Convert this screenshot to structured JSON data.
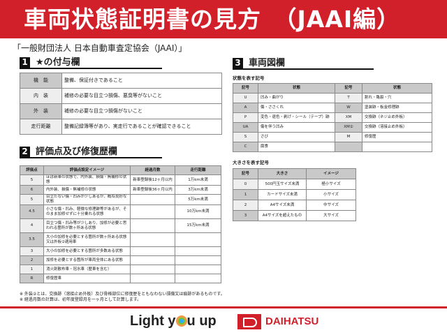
{
  "header": {
    "title": "車両状態証明書の見方　（JAAI編）"
  },
  "subtitle": "「一般財団法人 日本自動車査定協会（JAAI）」",
  "section1": {
    "num": "1",
    "title": "★の付与欄",
    "rows": [
      [
        "機　能",
        "整備、保証付きであること"
      ],
      [
        "内　装",
        "補修の必要な目立つ損傷、悪臭等がないこと"
      ],
      [
        "外　装",
        "補修の必要な目立つ損傷がないこと"
      ],
      [
        "走行距離",
        "整備記録簿等があり、実走行であることが確認できること"
      ]
    ]
  },
  "section2": {
    "num": "2",
    "title": "評価点及び修復歴欄",
    "headers": [
      "評価点",
      "評価点設定イメージ",
      "経過月数",
      "走行距離"
    ],
    "rows": [
      [
        "5",
        "ほぼ新車の状態で、内外装、損傷・無補修の状態",
        "新車登録後12ヶ月以内",
        "1万km未満"
      ],
      [
        "6",
        "内外装、損傷・無補修の状態",
        "新車登録後36ヶ月以内",
        "3万km未満"
      ],
      [
        "5",
        "目立たない傷・凹みが少しあるが、概ね良好な状態",
        "",
        "5万km未満"
      ],
      [
        "4.5",
        "小さな傷・凹み、軽微な修理跡等があるが、そのまま加修せずに十分乗れる状態",
        "",
        "10万km未満"
      ],
      [
        "4",
        "目立つ傷・凹み等が少しあり、加修が必要と思われる箇所が数ヶ所ある状態",
        "",
        "15万km未満"
      ],
      [
        "3.5",
        "大小の加修を必要とする箇所が数ヶ所ある状態又は外板②適用車",
        "",
        ""
      ],
      [
        "3",
        "大小の加修を必要とする箇所が多数ある状態",
        "",
        ""
      ],
      [
        "2",
        "加修を必要とする箇所が車両全体にある状態",
        "",
        ""
      ],
      [
        "1",
        "消火剤散布車・冠水車（歴車を含む）",
        "",
        ""
      ],
      [
        "R",
        "修復歴車",
        "",
        ""
      ]
    ]
  },
  "section3": {
    "num": "3",
    "title": "車両図欄",
    "state_label": "状態を表す記号",
    "state_headers": [
      "記号",
      "状態",
      "記号",
      "状態"
    ],
    "state_rows": [
      [
        "U",
        "凹み・曲がり",
        "T",
        "割れ・亀裂・穴"
      ],
      [
        "A",
        "傷・ささくれ",
        "W",
        "塗装跡・板金修理跡"
      ],
      [
        "P",
        "変色・退色・剥げ・シール（テープ）跡",
        "XM",
        "交換跡（ネジ止め外板）"
      ],
      [
        "UA",
        "傷を伴う凹み",
        "XM②",
        "交換跡（溶接止め外板）"
      ],
      [
        "S",
        "さび",
        "M",
        "修復歴"
      ],
      [
        "C",
        "腐食",
        "",
        ""
      ]
    ],
    "size_label": "大きさを表す記号",
    "size_headers": [
      "記号",
      "大きさ",
      "イメージ"
    ],
    "size_rows": [
      [
        "0",
        "500円玉サイズ未満",
        "極小サイズ"
      ],
      [
        "1",
        "カードサイズ未満",
        "小サイズ"
      ],
      [
        "2",
        "A4サイズ未満",
        "中サイズ"
      ],
      [
        "3",
        "A4サイズを超えたもの",
        "大サイズ"
      ]
    ]
  },
  "notes": [
    "※ 外装②とは、交換跡（溶接止め外板）及び骨格部位に修復歴をともなわない損傷又は痕跡があるものです。",
    "※ 経過月数の計算は、初年度登録月を一ヶ月として計算します。"
  ],
  "footer": {
    "slogan_pre": "Light y",
    "slogan_post": "u up",
    "brand": "DAIHATSU",
    "brand_color": "#d2202b"
  }
}
